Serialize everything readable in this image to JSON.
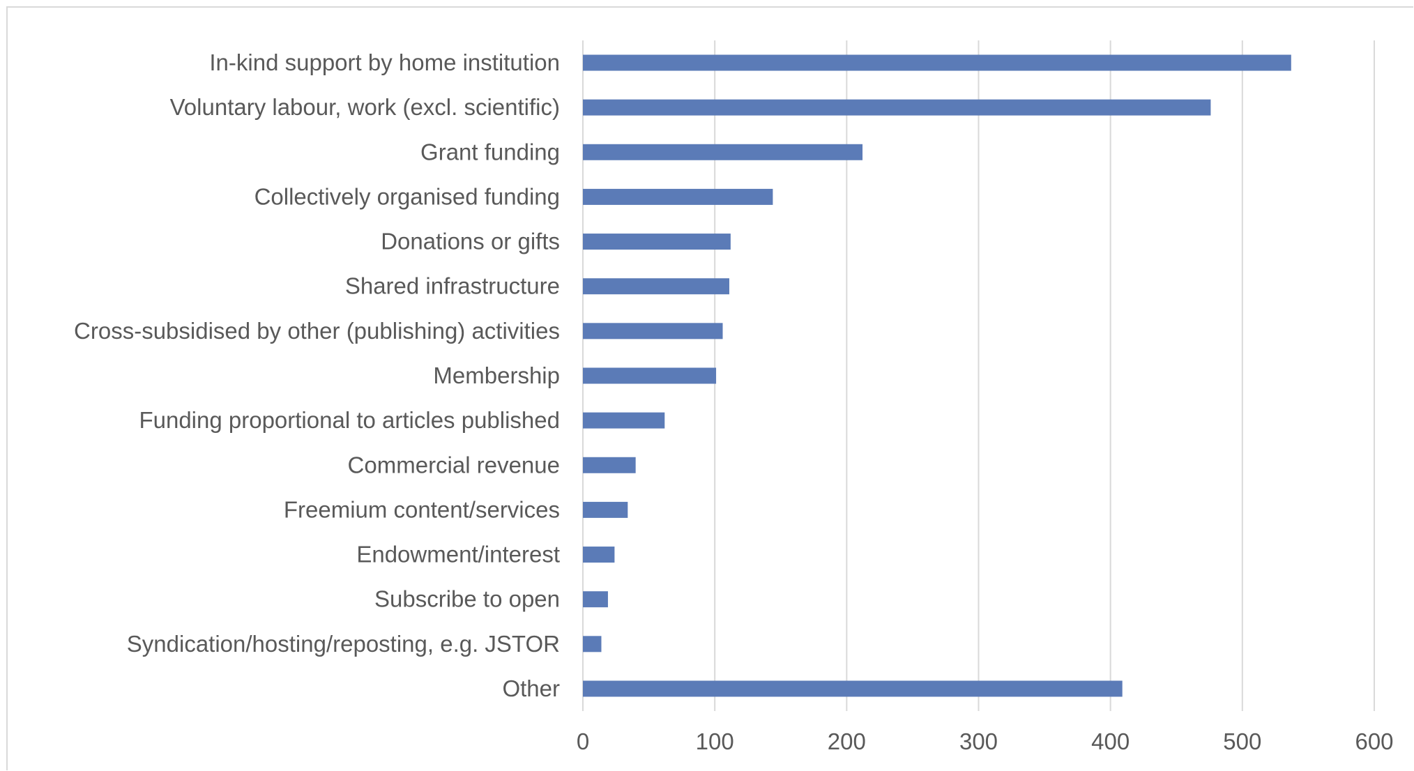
{
  "chart_data": {
    "type": "bar",
    "orientation": "horizontal",
    "title": "",
    "xlabel": "",
    "ylabel": "",
    "categories": [
      "In-kind support by home institution",
      "Voluntary labour, work (excl. scientific)",
      "Grant funding",
      "Collectively organised funding",
      "Donations or gifts",
      "Shared infrastructure",
      "Cross-subsidised by other (publishing) activities",
      "Membership",
      "Funding proportional to articles published",
      "Commercial revenue",
      "Freemium content/services",
      "Endowment/interest",
      "Subscribe to open",
      "Syndication/hosting/reposting, e.g. JSTOR",
      "Other"
    ],
    "values": [
      537,
      476,
      212,
      144,
      112,
      111,
      106,
      101,
      62,
      40,
      34,
      24,
      19,
      14,
      409
    ],
    "xlim": [
      0,
      600
    ],
    "xticks": [
      0,
      100,
      200,
      300,
      400,
      500,
      600
    ],
    "xtick_labels": [
      "0",
      "100",
      "200",
      "300",
      "400",
      "500",
      "600"
    ],
    "grid": "vertical",
    "legend": "none",
    "bar_color": "#5b7bb7",
    "grid_color": "#d9d9d9",
    "label_color": "#595959"
  }
}
